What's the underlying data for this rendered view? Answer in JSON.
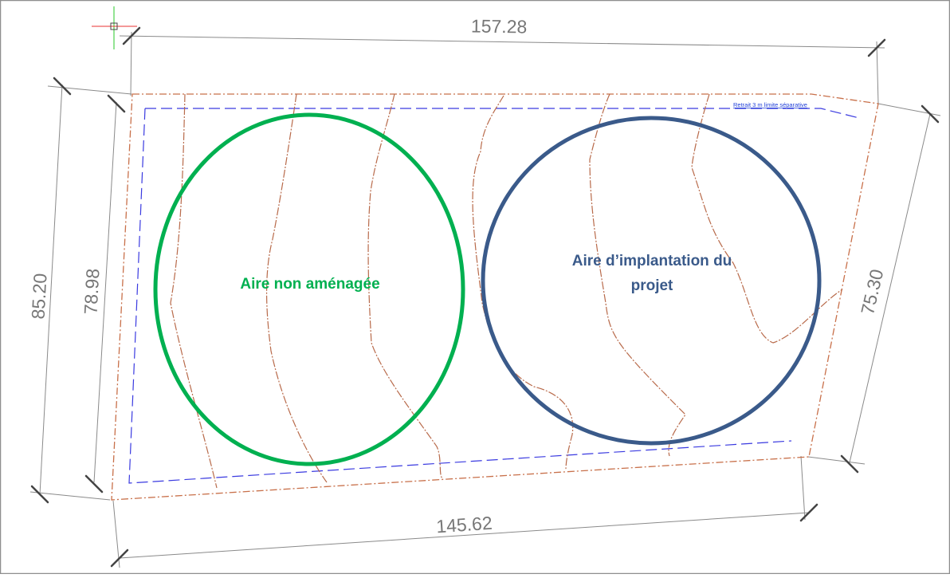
{
  "drawing": {
    "dimensions": {
      "top": "157.28",
      "bottom": "145.62",
      "left_outer": "85.20",
      "left_inner": "78.98",
      "right": "75.30"
    },
    "setback_note": "Retrait 3 m limite séparative",
    "zones": {
      "undeveloped_label": "Aire non aménagée",
      "project_label_line1": "Aire d’implantation du",
      "project_label_line2": "projet"
    },
    "colors": {
      "parcel_boundary": "#c8704a",
      "setback_line": "#3a3ae0",
      "dimension_lines": "#8a8a8a",
      "undeveloped_zone": "#00b050",
      "project_zone": "#3a5a8a"
    }
  }
}
